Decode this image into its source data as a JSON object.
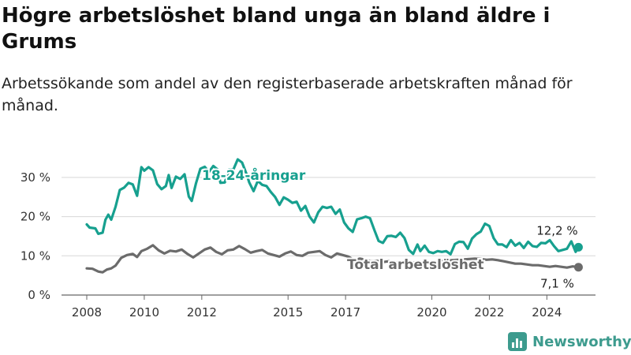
{
  "title": "Högre arbetslöshet bland unga än bland äldre i Grums",
  "subtitle": "Arbetssökande som andel av den registerbaserade arbetskraften månad för månad.",
  "brand": "Newsworthy",
  "chart_data": {
    "type": "line",
    "xlim": [
      2008.0,
      2025.5
    ],
    "ylim": [
      0,
      35
    ],
    "x_ticks": [
      {
        "value": 2008,
        "label": "2008"
      },
      {
        "value": 2010,
        "label": "2010"
      },
      {
        "value": 2012,
        "label": "2012"
      },
      {
        "value": 2015,
        "label": "2015"
      },
      {
        "value": 2017,
        "label": "2017"
      },
      {
        "value": 2020,
        "label": "2020"
      },
      {
        "value": 2022,
        "label": "2022"
      },
      {
        "value": 2024,
        "label": "2024"
      }
    ],
    "y_ticks": [
      {
        "value": 0,
        "label": "0 %"
      },
      {
        "value": 10,
        "label": "10 %"
      },
      {
        "value": 20,
        "label": "20 %"
      },
      {
        "value": 30,
        "label": "30 %"
      }
    ],
    "grid": true,
    "series": [
      {
        "name": "18-24-åringar",
        "color": "#17a08f",
        "end_label": "12,2 %",
        "points": [
          [
            2008.0,
            18.0
          ],
          [
            2008.1,
            17.2
          ],
          [
            2008.3,
            17.0
          ],
          [
            2008.4,
            15.6
          ],
          [
            2008.55,
            15.9
          ],
          [
            2008.65,
            19.2
          ],
          [
            2008.75,
            20.5
          ],
          [
            2008.85,
            19.2
          ],
          [
            2009.0,
            22.5
          ],
          [
            2009.15,
            26.8
          ],
          [
            2009.3,
            27.4
          ],
          [
            2009.45,
            28.6
          ],
          [
            2009.6,
            28.2
          ],
          [
            2009.75,
            25.3
          ],
          [
            2009.9,
            32.6
          ],
          [
            2010.0,
            31.7
          ],
          [
            2010.15,
            32.6
          ],
          [
            2010.3,
            31.8
          ],
          [
            2010.45,
            28.3
          ],
          [
            2010.6,
            27.0
          ],
          [
            2010.75,
            27.8
          ],
          [
            2010.85,
            30.6
          ],
          [
            2010.95,
            27.3
          ],
          [
            2011.1,
            30.2
          ],
          [
            2011.25,
            29.6
          ],
          [
            2011.4,
            30.8
          ],
          [
            2011.55,
            25.1
          ],
          [
            2011.65,
            24.0
          ],
          [
            2011.8,
            28.5
          ],
          [
            2011.95,
            32.2
          ],
          [
            2012.1,
            32.7
          ],
          [
            2012.25,
            31.4
          ],
          [
            2012.4,
            32.9
          ],
          [
            2012.55,
            32.0
          ],
          [
            2012.65,
            28.6
          ],
          [
            2012.8,
            28.7
          ],
          [
            2012.95,
            32.0
          ],
          [
            2013.1,
            32.0
          ],
          [
            2013.25,
            34.6
          ],
          [
            2013.4,
            33.8
          ],
          [
            2013.55,
            31.0
          ],
          [
            2013.65,
            28.7
          ],
          [
            2013.8,
            26.5
          ],
          [
            2013.95,
            29.1
          ],
          [
            2014.1,
            28.1
          ],
          [
            2014.25,
            27.8
          ],
          [
            2014.4,
            26.3
          ],
          [
            2014.55,
            25.0
          ],
          [
            2014.7,
            23.0
          ],
          [
            2014.85,
            24.9
          ],
          [
            2015.0,
            24.3
          ],
          [
            2015.15,
            23.5
          ],
          [
            2015.3,
            23.8
          ],
          [
            2015.45,
            21.5
          ],
          [
            2015.6,
            22.7
          ],
          [
            2015.75,
            20.0
          ],
          [
            2015.9,
            18.5
          ],
          [
            2016.05,
            21.1
          ],
          [
            2016.2,
            22.5
          ],
          [
            2016.35,
            22.2
          ],
          [
            2016.5,
            22.5
          ],
          [
            2016.65,
            20.7
          ],
          [
            2016.8,
            21.8
          ],
          [
            2016.95,
            18.5
          ],
          [
            2017.1,
            17.0
          ],
          [
            2017.25,
            16.1
          ],
          [
            2017.4,
            19.3
          ],
          [
            2017.55,
            19.6
          ],
          [
            2017.7,
            20.0
          ],
          [
            2017.85,
            19.6
          ],
          [
            2018.0,
            16.6
          ],
          [
            2018.15,
            13.8
          ],
          [
            2018.3,
            13.3
          ],
          [
            2018.45,
            15.0
          ],
          [
            2018.6,
            15.1
          ],
          [
            2018.75,
            14.8
          ],
          [
            2018.9,
            15.9
          ],
          [
            2019.05,
            14.5
          ],
          [
            2019.2,
            11.5
          ],
          [
            2019.35,
            10.5
          ],
          [
            2019.5,
            12.9
          ],
          [
            2019.6,
            11.2
          ],
          [
            2019.75,
            12.6
          ],
          [
            2019.9,
            11.0
          ],
          [
            2020.05,
            10.7
          ],
          [
            2020.2,
            11.2
          ],
          [
            2020.35,
            11.0
          ],
          [
            2020.5,
            11.2
          ],
          [
            2020.65,
            10.4
          ],
          [
            2020.8,
            13.0
          ],
          [
            2020.95,
            13.6
          ],
          [
            2021.1,
            13.5
          ],
          [
            2021.25,
            11.8
          ],
          [
            2021.4,
            14.4
          ],
          [
            2021.55,
            15.5
          ],
          [
            2021.7,
            16.2
          ],
          [
            2021.85,
            18.2
          ],
          [
            2022.0,
            17.6
          ],
          [
            2022.15,
            14.5
          ],
          [
            2022.3,
            12.9
          ],
          [
            2022.45,
            12.9
          ],
          [
            2022.6,
            12.2
          ],
          [
            2022.75,
            14.0
          ],
          [
            2022.9,
            12.6
          ],
          [
            2023.05,
            13.3
          ],
          [
            2023.2,
            12.0
          ],
          [
            2023.35,
            13.6
          ],
          [
            2023.5,
            12.5
          ],
          [
            2023.65,
            12.3
          ],
          [
            2023.8,
            13.3
          ],
          [
            2023.95,
            13.2
          ],
          [
            2024.1,
            14.0
          ],
          [
            2024.25,
            12.5
          ],
          [
            2024.4,
            11.2
          ],
          [
            2024.55,
            11.5
          ],
          [
            2024.7,
            11.8
          ],
          [
            2024.85,
            13.7
          ],
          [
            2025.0,
            11.0
          ],
          [
            2025.1,
            12.2
          ]
        ]
      },
      {
        "name": "Total arbetslöshet",
        "color": "#6b6b6b",
        "end_label": "7,1 %",
        "points": [
          [
            2008.0,
            6.8
          ],
          [
            2008.2,
            6.7
          ],
          [
            2008.4,
            6.0
          ],
          [
            2008.55,
            5.8
          ],
          [
            2008.7,
            6.5
          ],
          [
            2008.85,
            6.8
          ],
          [
            2009.0,
            7.5
          ],
          [
            2009.2,
            9.5
          ],
          [
            2009.4,
            10.2
          ],
          [
            2009.6,
            10.5
          ],
          [
            2009.75,
            9.7
          ],
          [
            2009.9,
            11.2
          ],
          [
            2010.1,
            11.8
          ],
          [
            2010.3,
            12.7
          ],
          [
            2010.5,
            11.4
          ],
          [
            2010.7,
            10.6
          ],
          [
            2010.9,
            11.3
          ],
          [
            2011.1,
            11.1
          ],
          [
            2011.3,
            11.6
          ],
          [
            2011.5,
            10.5
          ],
          [
            2011.7,
            9.6
          ],
          [
            2011.9,
            10.6
          ],
          [
            2012.1,
            11.6
          ],
          [
            2012.3,
            12.1
          ],
          [
            2012.5,
            11.0
          ],
          [
            2012.7,
            10.4
          ],
          [
            2012.9,
            11.4
          ],
          [
            2013.1,
            11.6
          ],
          [
            2013.3,
            12.5
          ],
          [
            2013.5,
            11.7
          ],
          [
            2013.7,
            10.8
          ],
          [
            2013.9,
            11.2
          ],
          [
            2014.1,
            11.5
          ],
          [
            2014.3,
            10.6
          ],
          [
            2014.5,
            10.2
          ],
          [
            2014.7,
            9.8
          ],
          [
            2014.9,
            10.6
          ],
          [
            2015.1,
            11.1
          ],
          [
            2015.3,
            10.2
          ],
          [
            2015.5,
            10.0
          ],
          [
            2015.7,
            10.8
          ],
          [
            2015.9,
            11.0
          ],
          [
            2016.1,
            11.2
          ],
          [
            2016.3,
            10.2
          ],
          [
            2016.5,
            9.6
          ],
          [
            2016.7,
            10.6
          ],
          [
            2016.9,
            10.2
          ],
          [
            2017.1,
            9.8
          ],
          [
            2017.3,
            8.9
          ],
          [
            2017.5,
            9.3
          ],
          [
            2017.7,
            9.0
          ],
          [
            2017.9,
            8.6
          ],
          [
            2018.1,
            8.7
          ],
          [
            2018.3,
            8.4
          ],
          [
            2018.5,
            8.6
          ],
          [
            2018.7,
            8.2
          ],
          [
            2018.9,
            8.5
          ],
          [
            2019.1,
            8.2
          ],
          [
            2019.3,
            8.1
          ],
          [
            2019.5,
            8.5
          ],
          [
            2019.7,
            8.4
          ],
          [
            2019.9,
            8.4
          ],
          [
            2020.1,
            8.3
          ],
          [
            2020.3,
            8.6
          ],
          [
            2020.5,
            8.8
          ],
          [
            2020.7,
            8.9
          ],
          [
            2020.9,
            9.0
          ],
          [
            2021.1,
            9.1
          ],
          [
            2021.3,
            9.2
          ],
          [
            2021.5,
            9.3
          ],
          [
            2021.7,
            9.2
          ],
          [
            2021.9,
            9.0
          ],
          [
            2022.1,
            9.1
          ],
          [
            2022.3,
            8.9
          ],
          [
            2022.5,
            8.6
          ],
          [
            2022.7,
            8.3
          ],
          [
            2022.9,
            8.0
          ],
          [
            2023.1,
            8.0
          ],
          [
            2023.3,
            7.8
          ],
          [
            2023.5,
            7.6
          ],
          [
            2023.7,
            7.6
          ],
          [
            2023.9,
            7.4
          ],
          [
            2024.1,
            7.2
          ],
          [
            2024.3,
            7.4
          ],
          [
            2024.5,
            7.2
          ],
          [
            2024.7,
            7.0
          ],
          [
            2024.9,
            7.3
          ],
          [
            2025.1,
            7.1
          ]
        ]
      }
    ]
  }
}
